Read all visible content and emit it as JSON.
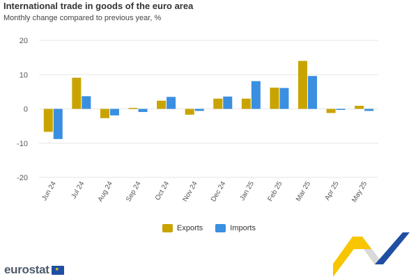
{
  "title": "International trade in goods of the euro area",
  "subtitle": "Monthly change compared to previous year, %",
  "brand": "eurostat",
  "chart_data": {
    "type": "bar",
    "categories": [
      "Jun 24",
      "Jul 24",
      "Aug 24",
      "Sep 24",
      "Oct 24",
      "Nov 24",
      "Dec 24",
      "Jan 25",
      "Feb 25",
      "Mar 25",
      "Apr 25",
      "May 25"
    ],
    "series": [
      {
        "name": "Exports",
        "color": "#c9a400",
        "values": [
          -6.7,
          9.1,
          -2.7,
          0.3,
          2.4,
          -1.7,
          3.0,
          3.0,
          6.2,
          14.0,
          -1.2,
          0.9
        ]
      },
      {
        "name": "Imports",
        "color": "#3a8fe0",
        "values": [
          -8.8,
          3.7,
          -1.9,
          -0.9,
          3.5,
          -0.6,
          3.6,
          8.1,
          6.1,
          9.6,
          -0.3,
          -0.6
        ]
      }
    ],
    "yticks": [
      20,
      10,
      0,
      -10,
      -20
    ],
    "ylim": [
      -20,
      20
    ],
    "grid": true,
    "legend_position": "bottom-center"
  }
}
